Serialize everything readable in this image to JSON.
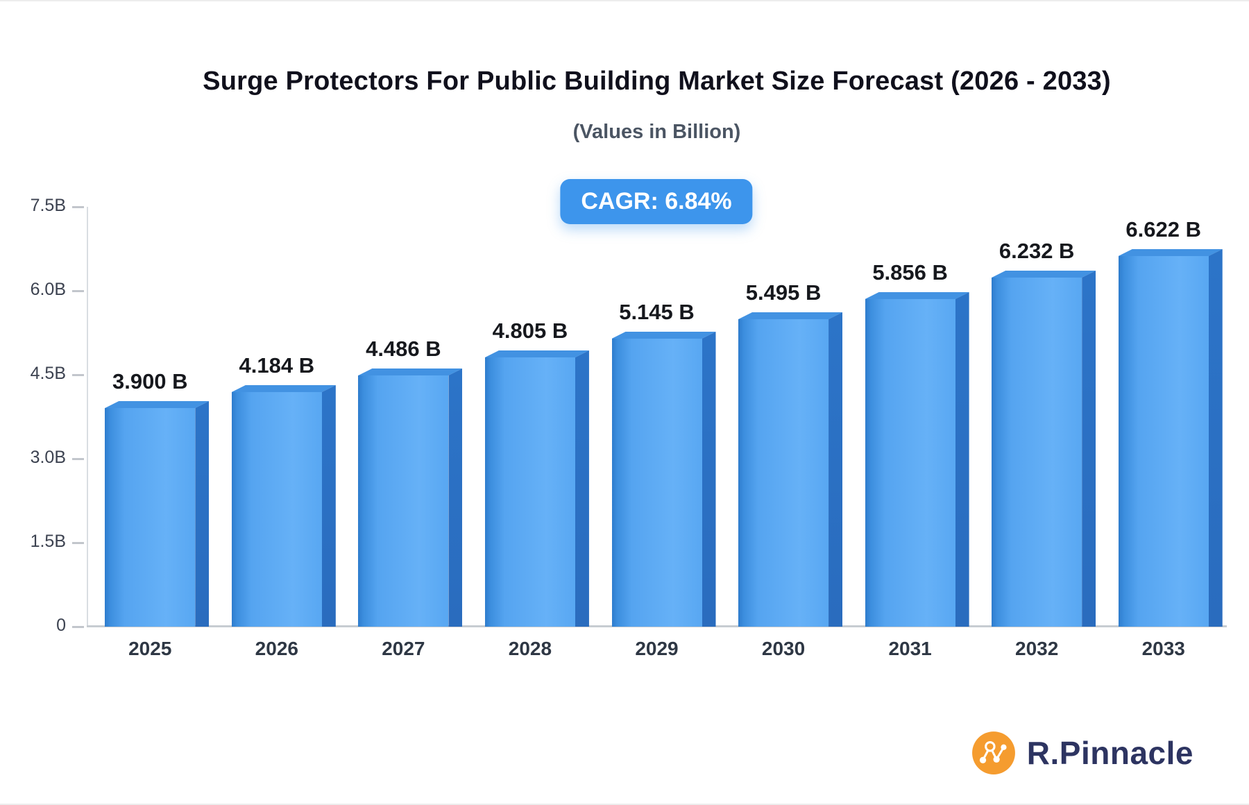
{
  "title": "Surge Protectors For Public Building Market Size Forecast (2026 - 2033)",
  "subtitle": "(Values in Billion)",
  "cagr_badge": "CAGR: 6.84%",
  "branding": {
    "name": "R.Pinnacle",
    "logo_icon": "network-nodes-icon"
  },
  "colors": {
    "bar_front": "#55a4f0",
    "bar_front_dark_edge": "#2e7ccd",
    "bar_side": "#2b70c3",
    "badge_bg": "#3d95ec",
    "logo_orange": "#f59c2f",
    "brand_text": "#2d3461",
    "axis_line": "#c7ccd2"
  },
  "chart_data": {
    "type": "bar",
    "title": "Surge Protectors For Public Building Market Size Forecast (2026 - 2033)",
    "subtitle": "(Values in Billion)",
    "categories": [
      "2025",
      "2026",
      "2027",
      "2028",
      "2029",
      "2030",
      "2031",
      "2032",
      "2033"
    ],
    "values": [
      3.9,
      4.184,
      4.486,
      4.805,
      5.145,
      5.495,
      5.856,
      6.232,
      6.622
    ],
    "value_labels": [
      "3.900 B",
      "4.184 B",
      "4.486 B",
      "4.805 B",
      "5.145 B",
      "5.495 B",
      "5.856 B",
      "6.232 B",
      "6.622 B"
    ],
    "unit": "Billion",
    "cagr": "6.84%",
    "xlabel": "",
    "ylabel": "",
    "ylim": [
      0,
      7.5
    ],
    "yticks": [
      {
        "value": 0,
        "label": "0"
      },
      {
        "value": 1.5,
        "label": "1.5B"
      },
      {
        "value": 3.0,
        "label": "3.0B"
      },
      {
        "value": 4.5,
        "label": "4.5B"
      },
      {
        "value": 6.0,
        "label": "6.0B"
      },
      {
        "value": 7.5,
        "label": "7.5B"
      }
    ],
    "grid": false,
    "legend": false
  }
}
